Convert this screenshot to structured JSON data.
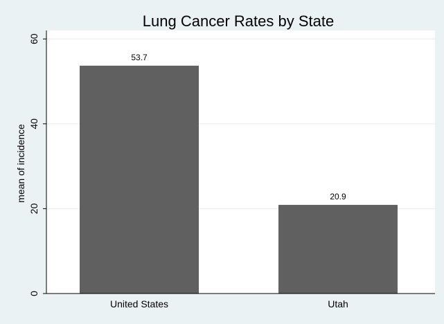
{
  "chart_data": {
    "type": "bar",
    "title": "Lung Cancer Rates by State",
    "xlabel": "",
    "ylabel": "mean of incidence",
    "categories": [
      "United States",
      "Utah"
    ],
    "values": [
      53.7,
      20.9
    ],
    "data_labels": [
      "53.7",
      "20.9"
    ],
    "ylim": [
      0,
      62
    ],
    "yticks": [
      0,
      20,
      40,
      60
    ],
    "ytick_labels": [
      "0",
      "20",
      "40",
      "60"
    ],
    "grid": true,
    "legend": "none"
  },
  "colors": {
    "background": "#EAF2F3",
    "plot_background": "#FFFFFF",
    "bar": "#606060",
    "gridline": "#E6EBEC",
    "axis": "#000000"
  }
}
